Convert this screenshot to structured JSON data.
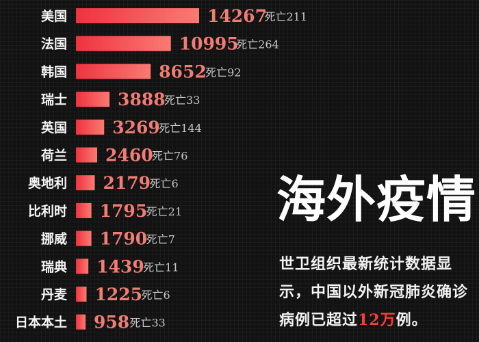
{
  "chart_data": {
    "type": "bar",
    "orientation": "horizontal",
    "categories": [
      "美国",
      "法国",
      "韩国",
      "瑞士",
      "英国",
      "荷兰",
      "奥地利",
      "比利时",
      "挪威",
      "瑞典",
      "丹麦",
      "日本本土"
    ],
    "values": [
      14267,
      10995,
      8652,
      3888,
      3269,
      2460,
      2179,
      1795,
      1790,
      1439,
      1225,
      958
    ],
    "deaths": [
      211,
      264,
      92,
      33,
      144,
      76,
      6,
      21,
      7,
      11,
      6,
      33
    ],
    "death_prefix": "死亡",
    "colors": {
      "bar_start": "#ee3340",
      "bar_end": "#fb7a72",
      "value_text": "#f07d76",
      "label_text": "#f5f5f5",
      "death_text": "#c8c8c8"
    }
  },
  "panel": {
    "title": "海外疫情",
    "desc_before": "世卫组织最新统计数据显示，中国以外新冠肺炎确诊病例已超过",
    "desc_highlight": "12万",
    "desc_after": "例。",
    "highlight_color": "#ff3b3b"
  }
}
